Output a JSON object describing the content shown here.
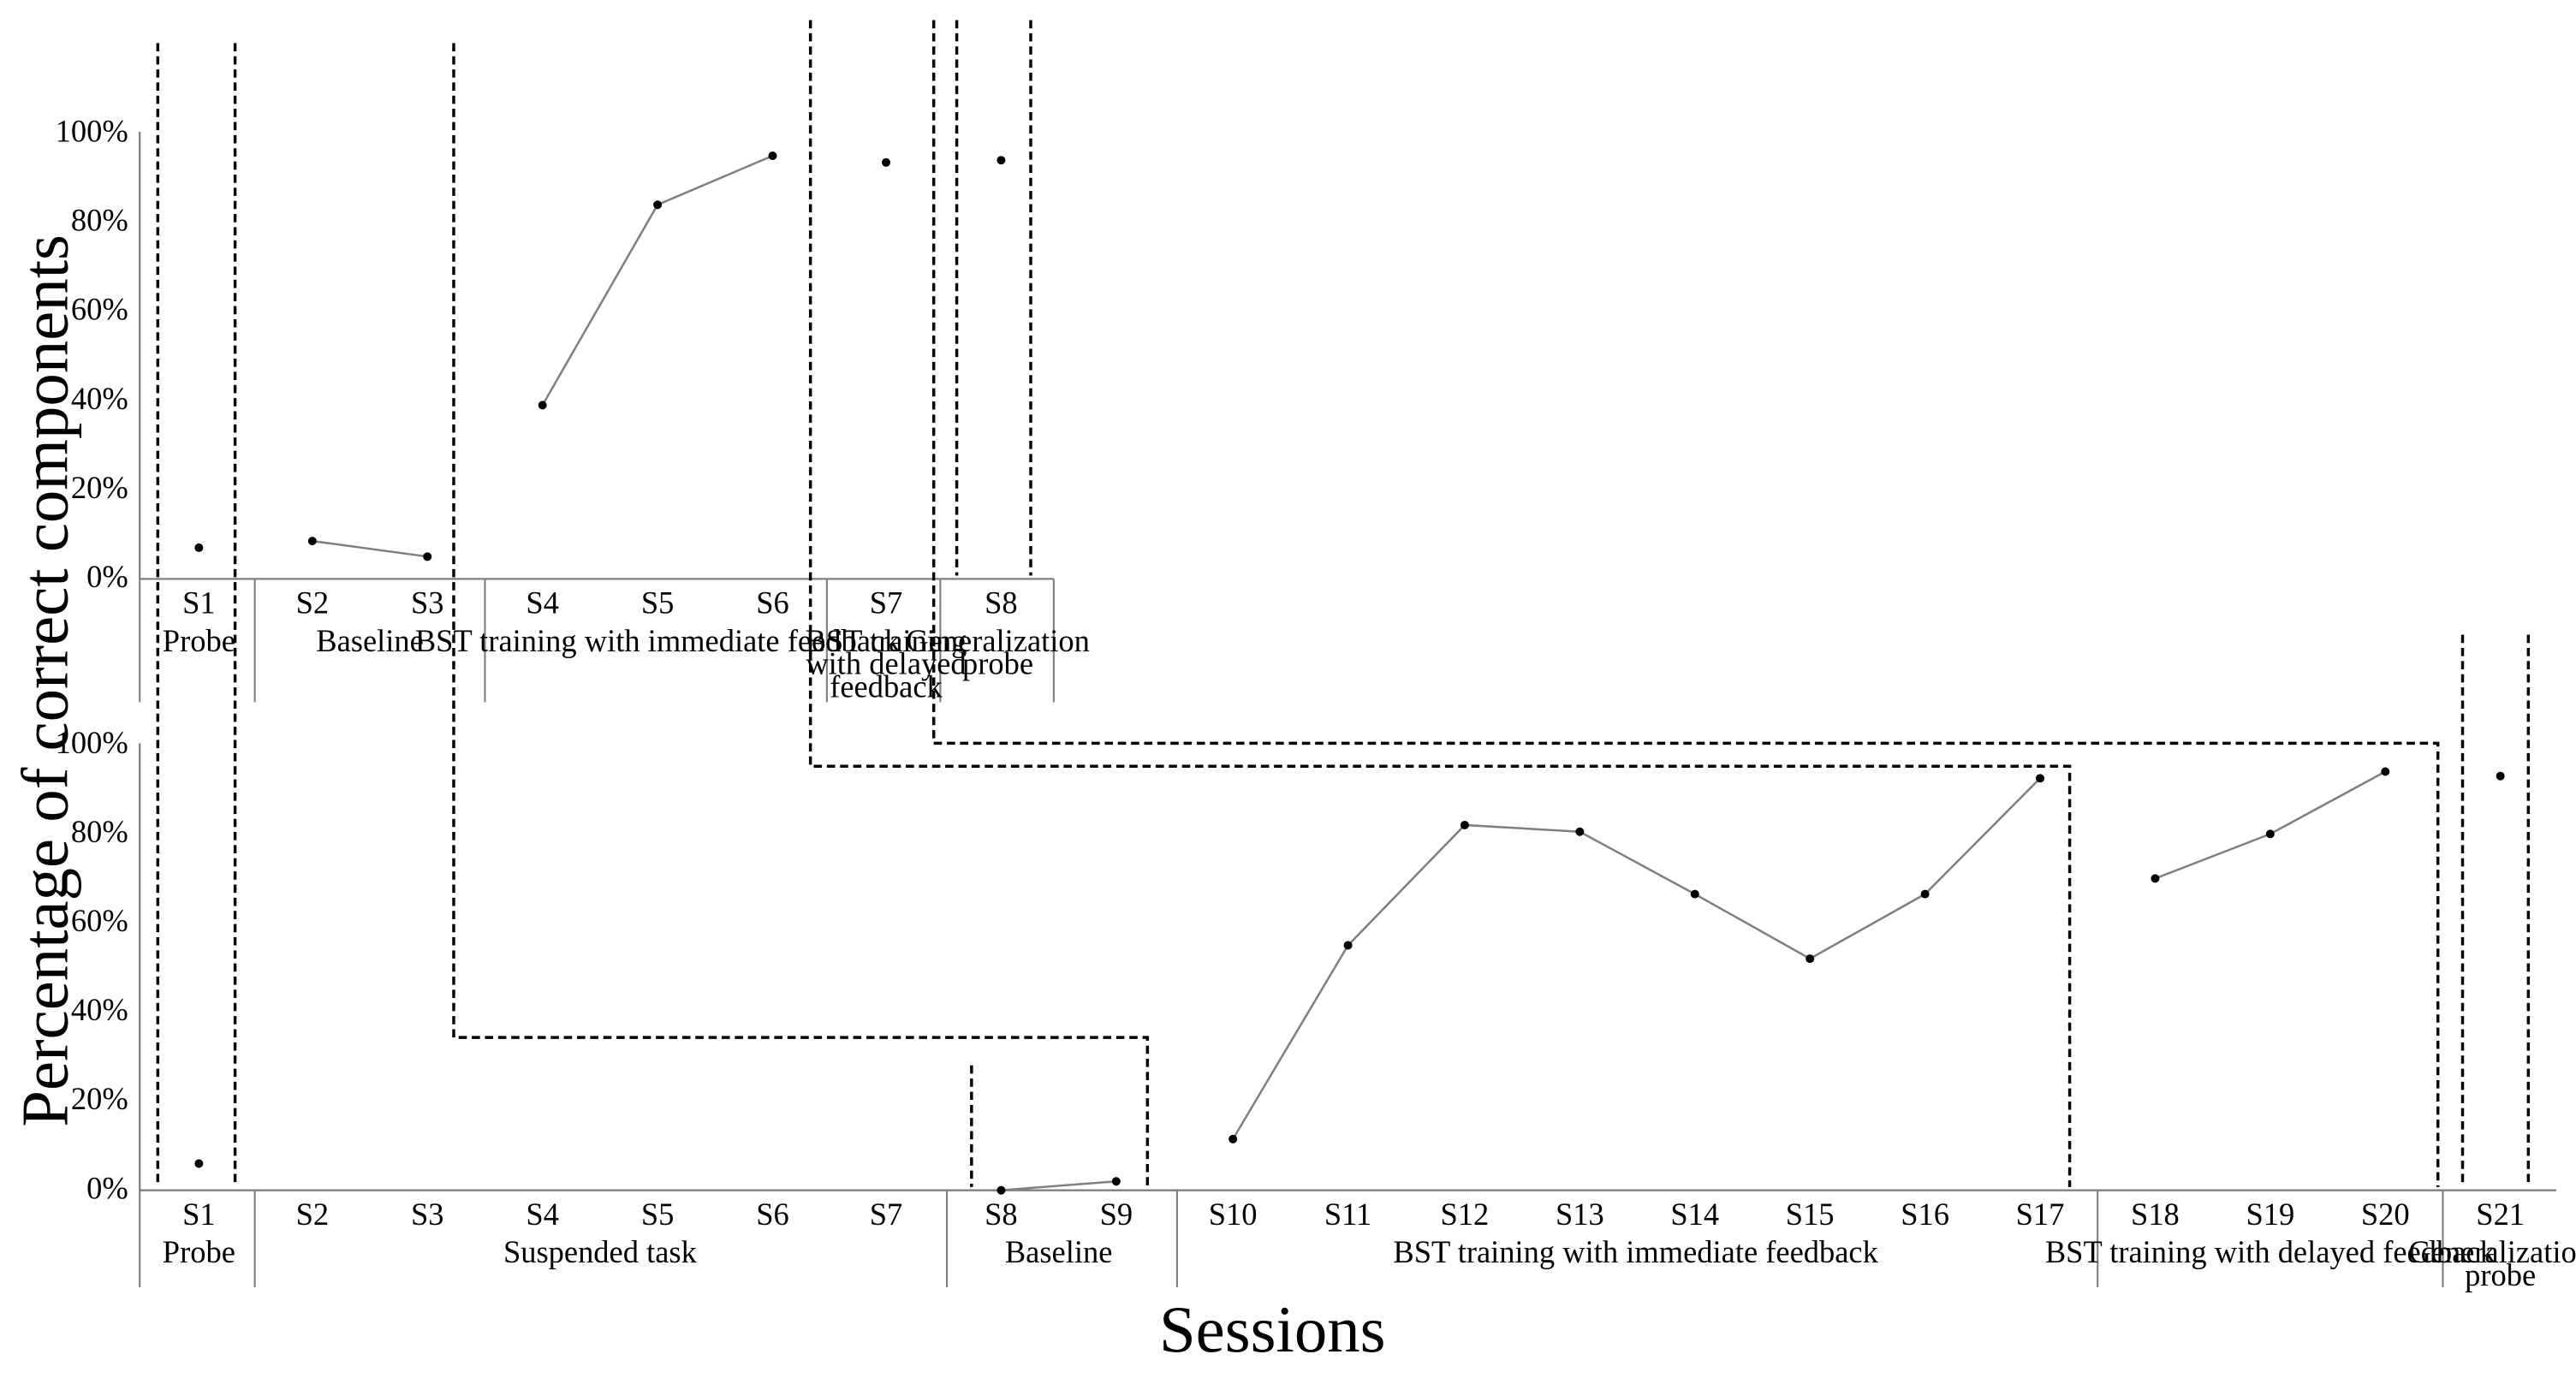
{
  "chart_data": [
    {
      "type": "line",
      "panel": "top",
      "y_tick_labels": [
        "0%",
        "20%",
        "40%",
        "60%",
        "80%",
        "100%"
      ],
      "ylim": [
        0,
        100
      ],
      "sessions": [
        {
          "label": "S1",
          "value": 7
        },
        {
          "label": "S2",
          "value": 8.5
        },
        {
          "label": "S3",
          "value": 5
        },
        {
          "label": "S4",
          "value": 39
        },
        {
          "label": "S5",
          "value": 84
        },
        {
          "label": "S6",
          "value": 95
        },
        {
          "label": "S7",
          "value": 93.5
        },
        {
          "label": "S8",
          "value": 94
        }
      ],
      "connected_runs": [
        [
          "S2",
          "S3"
        ],
        [
          "S4",
          "S5",
          "S6"
        ]
      ],
      "phases": [
        {
          "label_lines": [
            "Probe"
          ],
          "sessions": [
            "S1"
          ]
        },
        {
          "label_lines": [
            "Baseline"
          ],
          "sessions": [
            "S2",
            "S3"
          ]
        },
        {
          "label_lines": [
            "BST training with immediate feedback"
          ],
          "sessions": [
            "S4",
            "S5",
            "S6"
          ]
        },
        {
          "label_lines": [
            "BST training",
            "with delayed",
            "feedback"
          ],
          "sessions": [
            "S7"
          ]
        },
        {
          "label_lines": [
            "Generalization",
            "probe"
          ],
          "sessions": [
            "S8"
          ]
        }
      ]
    },
    {
      "type": "line",
      "panel": "bottom",
      "y_tick_labels": [
        "0%",
        "20%",
        "40%",
        "60%",
        "80%",
        "100%"
      ],
      "ylim": [
        0,
        100
      ],
      "sessions": [
        {
          "label": "S1",
          "value": 6
        },
        {
          "label": "S2",
          "value": null
        },
        {
          "label": "S3",
          "value": null
        },
        {
          "label": "S4",
          "value": null
        },
        {
          "label": "S5",
          "value": null
        },
        {
          "label": "S6",
          "value": null
        },
        {
          "label": "S7",
          "value": null
        },
        {
          "label": "S8",
          "value": 0
        },
        {
          "label": "S9",
          "value": 2
        },
        {
          "label": "S10",
          "value": 11.5
        },
        {
          "label": "S11",
          "value": 55
        },
        {
          "label": "S12",
          "value": 82
        },
        {
          "label": "S13",
          "value": 80.5
        },
        {
          "label": "S14",
          "value": 66.5
        },
        {
          "label": "S15",
          "value": 52
        },
        {
          "label": "S16",
          "value": 66.5
        },
        {
          "label": "S17",
          "value": 92.5
        },
        {
          "label": "S18",
          "value": 70
        },
        {
          "label": "S19",
          "value": 80
        },
        {
          "label": "S20",
          "value": 94
        },
        {
          "label": "S21",
          "value": 93
        }
      ],
      "connected_runs": [
        [
          "S8",
          "S9"
        ],
        [
          "S10",
          "S11",
          "S12",
          "S13",
          "S14",
          "S15",
          "S16",
          "S17"
        ],
        [
          "S18",
          "S19",
          "S20"
        ]
      ],
      "phases": [
        {
          "label_lines": [
            "Probe"
          ],
          "sessions": [
            "S1"
          ]
        },
        {
          "label_lines": [
            "Suspended task"
          ],
          "sessions": [
            "S2",
            "S3",
            "S4",
            "S5",
            "S6",
            "S7"
          ]
        },
        {
          "label_lines": [
            "Baseline"
          ],
          "sessions": [
            "S8",
            "S9"
          ]
        },
        {
          "label_lines": [
            "BST training with immediate feedback"
          ],
          "sessions": [
            "S10",
            "S11",
            "S12",
            "S13",
            "S14",
            "S15",
            "S16",
            "S17"
          ]
        },
        {
          "label_lines": [
            "BST training with delayed feedback"
          ],
          "sessions": [
            "S18",
            "S19",
            "S20"
          ]
        },
        {
          "label_lines": [
            "Generalization",
            "probe"
          ],
          "sessions": [
            "S21"
          ]
        }
      ]
    }
  ],
  "ylabel": "Percentage of correct components",
  "xlabel": "Sessions",
  "colors": {
    "line": "#7f7f7f",
    "marker": "#000000",
    "axis": "#7f7f7f",
    "phase_line": "#000000"
  }
}
